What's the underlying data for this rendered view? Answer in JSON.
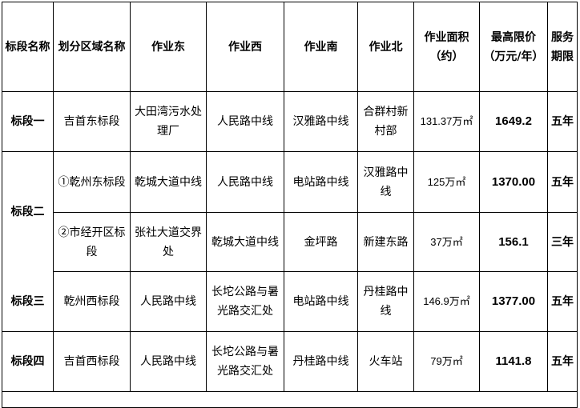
{
  "headers": {
    "c1": "标段名称",
    "c2": "划分区域名称",
    "c3": "作业东",
    "c4": "作业西",
    "c5": "作业南",
    "c6": "作业北",
    "c7": "作业面积（约）",
    "c8": "最高限价（万元/年）",
    "c9": "服务期限"
  },
  "rows": [
    {
      "segment": "标段一",
      "area": "吉首东标段",
      "east": "大田湾污水处理厂",
      "west": "人民路中线",
      "south": "汉雅路中线",
      "north": "合群村新村部",
      "size": "131.37万㎡",
      "price": "1649.2",
      "term": "五年"
    },
    {
      "segment": "标段二",
      "area": "①乾州东标段",
      "east": "乾城大道中线",
      "west": "人民路中线",
      "south": "电站路中线",
      "north": "汉雅路中线",
      "size": "125万㎡",
      "price": "1370.00",
      "term": "五年"
    },
    {
      "segment": "",
      "area": "②市经开区标段",
      "east": "张社大道交界处",
      "west": "乾城大道中线",
      "south": "金坪路",
      "north": "新建东路",
      "size": "37万㎡",
      "price": "156.1",
      "term": "三年"
    },
    {
      "segment": "标段三",
      "area": "乾州西标段",
      "east": "人民路中线",
      "west": "长坨公路与暑光路交汇处",
      "south": "电站路中线",
      "north": "丹桂路中线",
      "size": "146.9万㎡",
      "price": "1377.00",
      "term": "五年"
    },
    {
      "segment": "标段四",
      "area": "吉首西标段",
      "east": "人民路中线",
      "west": "长坨公路与暑光路交汇处",
      "south": "丹桂路中线",
      "north": "火车站",
      "size": "79万㎡",
      "price": "1141.8",
      "term": "五年"
    }
  ]
}
